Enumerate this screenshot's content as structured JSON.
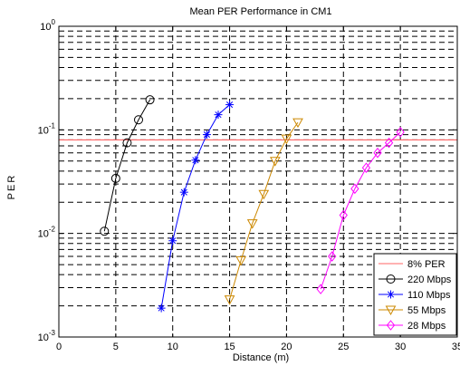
{
  "chart_data": {
    "type": "line",
    "title": "Mean PER Performance in CM1",
    "xlabel": "Distance (m)",
    "ylabel": "PER",
    "xlim": [
      0,
      35
    ],
    "ylim": [
      0.001,
      1
    ],
    "y_scale": "log",
    "grid": true,
    "legend_position": "bottom-right",
    "x_ticks": [
      0,
      5,
      10,
      15,
      20,
      25,
      30,
      35
    ],
    "x_tick_labels": [
      "0",
      "5",
      "10",
      "15",
      "20",
      "25",
      "30",
      "35"
    ],
    "y_ticks": [
      0.001,
      0.01,
      0.1,
      1
    ],
    "y_tick_labels": [
      {
        "base": "10",
        "exp": "-3"
      },
      {
        "base": "10",
        "exp": "-2"
      },
      {
        "base": "10",
        "exp": "-1"
      },
      {
        "base": "10",
        "exp": "0"
      }
    ],
    "reference_line": {
      "name": "8% PER",
      "y": 0.08,
      "color": "#ff6666"
    },
    "series": [
      {
        "name": "220 Mbps",
        "color": "#000000",
        "marker": "circle",
        "x": [
          4,
          5,
          6,
          7,
          8
        ],
        "y": [
          0.0105,
          0.034,
          0.075,
          0.125,
          0.195
        ]
      },
      {
        "name": "110 Mbps",
        "color": "#0000ff",
        "marker": "star",
        "x": [
          9,
          10,
          11,
          12,
          13,
          14,
          15
        ],
        "y": [
          0.0019,
          0.0085,
          0.025,
          0.051,
          0.09,
          0.14,
          0.175
        ]
      },
      {
        "name": "55 Mbps",
        "color": "#cc8800",
        "marker": "triangle-down",
        "x": [
          15,
          16,
          17,
          18,
          19,
          20,
          21
        ],
        "y": [
          0.0023,
          0.0055,
          0.0125,
          0.024,
          0.05,
          0.082,
          0.118
        ]
      },
      {
        "name": "28 Mbps",
        "color": "#ff00ff",
        "marker": "diamond",
        "x": [
          23,
          24,
          25,
          26,
          27,
          28,
          29,
          30
        ],
        "y": [
          0.0029,
          0.006,
          0.015,
          0.027,
          0.043,
          0.06,
          0.075,
          0.095
        ]
      }
    ]
  }
}
